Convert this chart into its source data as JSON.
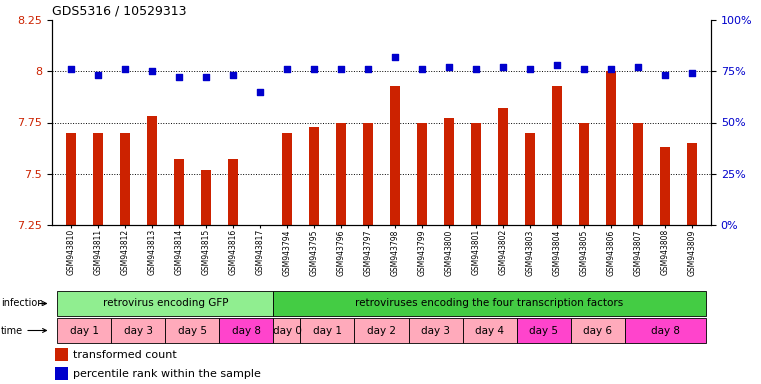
{
  "title": "GDS5316 / 10529313",
  "samples": [
    "GSM943810",
    "GSM943811",
    "GSM943812",
    "GSM943813",
    "GSM943814",
    "GSM943815",
    "GSM943816",
    "GSM943817",
    "GSM943794",
    "GSM943795",
    "GSM943796",
    "GSM943797",
    "GSM943798",
    "GSM943799",
    "GSM943800",
    "GSM943801",
    "GSM943802",
    "GSM943803",
    "GSM943804",
    "GSM943805",
    "GSM943806",
    "GSM943807",
    "GSM943808",
    "GSM943809"
  ],
  "red_values": [
    7.7,
    7.7,
    7.7,
    7.78,
    7.57,
    7.52,
    7.57,
    7.25,
    7.7,
    7.73,
    7.75,
    7.75,
    7.93,
    7.75,
    7.77,
    7.75,
    7.82,
    7.7,
    7.93,
    7.75,
    8.0,
    7.75,
    7.63,
    7.65
  ],
  "blue_values": [
    76,
    73,
    76,
    75,
    72,
    72,
    73,
    65,
    76,
    76,
    76,
    76,
    82,
    76,
    77,
    76,
    77,
    76,
    78,
    76,
    76,
    77,
    73,
    74
  ],
  "ylim_left": [
    7.25,
    8.25
  ],
  "ylim_right": [
    0,
    100
  ],
  "yticks_left": [
    7.25,
    7.5,
    7.75,
    8.0,
    8.25
  ],
  "yticks_right": [
    0,
    25,
    50,
    75,
    100
  ],
  "ytick_labels_left": [
    "7.25",
    "7.5",
    "7.75",
    "8",
    "8.25"
  ],
  "ytick_labels_right": [
    "0%",
    "25%",
    "50%",
    "75%",
    "100%"
  ],
  "infection_groups": [
    {
      "label": "retrovirus encoding GFP",
      "start": 0,
      "end": 8,
      "color": "#90EE90"
    },
    {
      "label": "retroviruses encoding the four transcription factors",
      "start": 8,
      "end": 24,
      "color": "#44CC44"
    }
  ],
  "time_groups": [
    {
      "label": "day 1",
      "start": 0,
      "end": 2,
      "color": "#FFAABB"
    },
    {
      "label": "day 3",
      "start": 2,
      "end": 4,
      "color": "#FFAABB"
    },
    {
      "label": "day 5",
      "start": 4,
      "end": 6,
      "color": "#FFAABB"
    },
    {
      "label": "day 8",
      "start": 6,
      "end": 8,
      "color": "#FF44CC"
    },
    {
      "label": "day 0",
      "start": 8,
      "end": 9,
      "color": "#FFAABB"
    },
    {
      "label": "day 1",
      "start": 9,
      "end": 11,
      "color": "#FFAABB"
    },
    {
      "label": "day 2",
      "start": 11,
      "end": 13,
      "color": "#FFAABB"
    },
    {
      "label": "day 3",
      "start": 13,
      "end": 15,
      "color": "#FFAABB"
    },
    {
      "label": "day 4",
      "start": 15,
      "end": 17,
      "color": "#FFAABB"
    },
    {
      "label": "day 5",
      "start": 17,
      "end": 19,
      "color": "#FF44CC"
    },
    {
      "label": "day 6",
      "start": 19,
      "end": 21,
      "color": "#FFAABB"
    },
    {
      "label": "day 8",
      "start": 21,
      "end": 24,
      "color": "#FF44CC"
    }
  ],
  "bar_color": "#CC2200",
  "dot_color": "#0000CC",
  "grid_color": "#000000",
  "bg_color": "#FFFFFF",
  "tick_label_color_left": "#CC2200",
  "tick_label_color_right": "#0000CC",
  "title_color": "#000000",
  "legend_red_label": "transformed count",
  "legend_blue_label": "percentile rank within the sample"
}
